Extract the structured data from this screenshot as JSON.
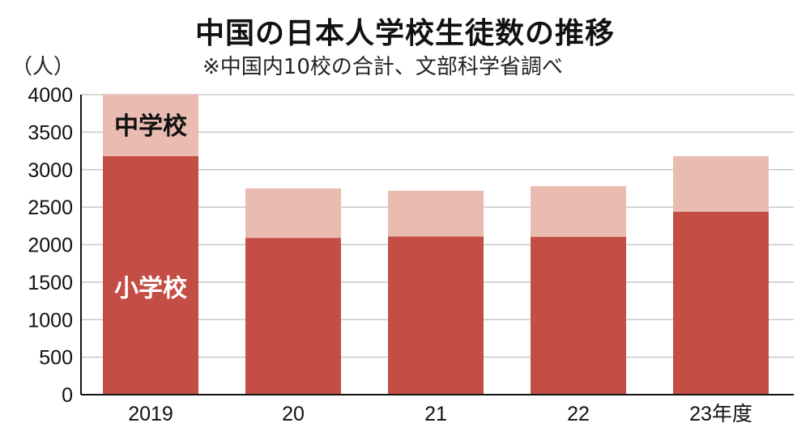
{
  "title": "中国の日本人学校生徒数の推移",
  "subtitle": "※中国内10校の合計、文部科学省調べ",
  "unit": "（人）",
  "colors": {
    "elementary": "#c44e45",
    "middle": "#eabcb1",
    "grid": "#c8c8c8",
    "axis": "#111111"
  },
  "chart_data": {
    "type": "bar",
    "stacked": true,
    "categories": [
      "2019",
      "20",
      "21",
      "22",
      "23年度"
    ],
    "series": [
      {
        "name": "小学校",
        "values": [
          3180,
          2090,
          2110,
          2105,
          2440
        ]
      },
      {
        "name": "中学校",
        "values": [
          820,
          660,
          610,
          675,
          740
        ]
      }
    ],
    "yticks": [
      0,
      500,
      1000,
      1500,
      2000,
      2500,
      3000,
      3500,
      4000
    ],
    "ylim": [
      0,
      4000
    ],
    "grid": true
  }
}
